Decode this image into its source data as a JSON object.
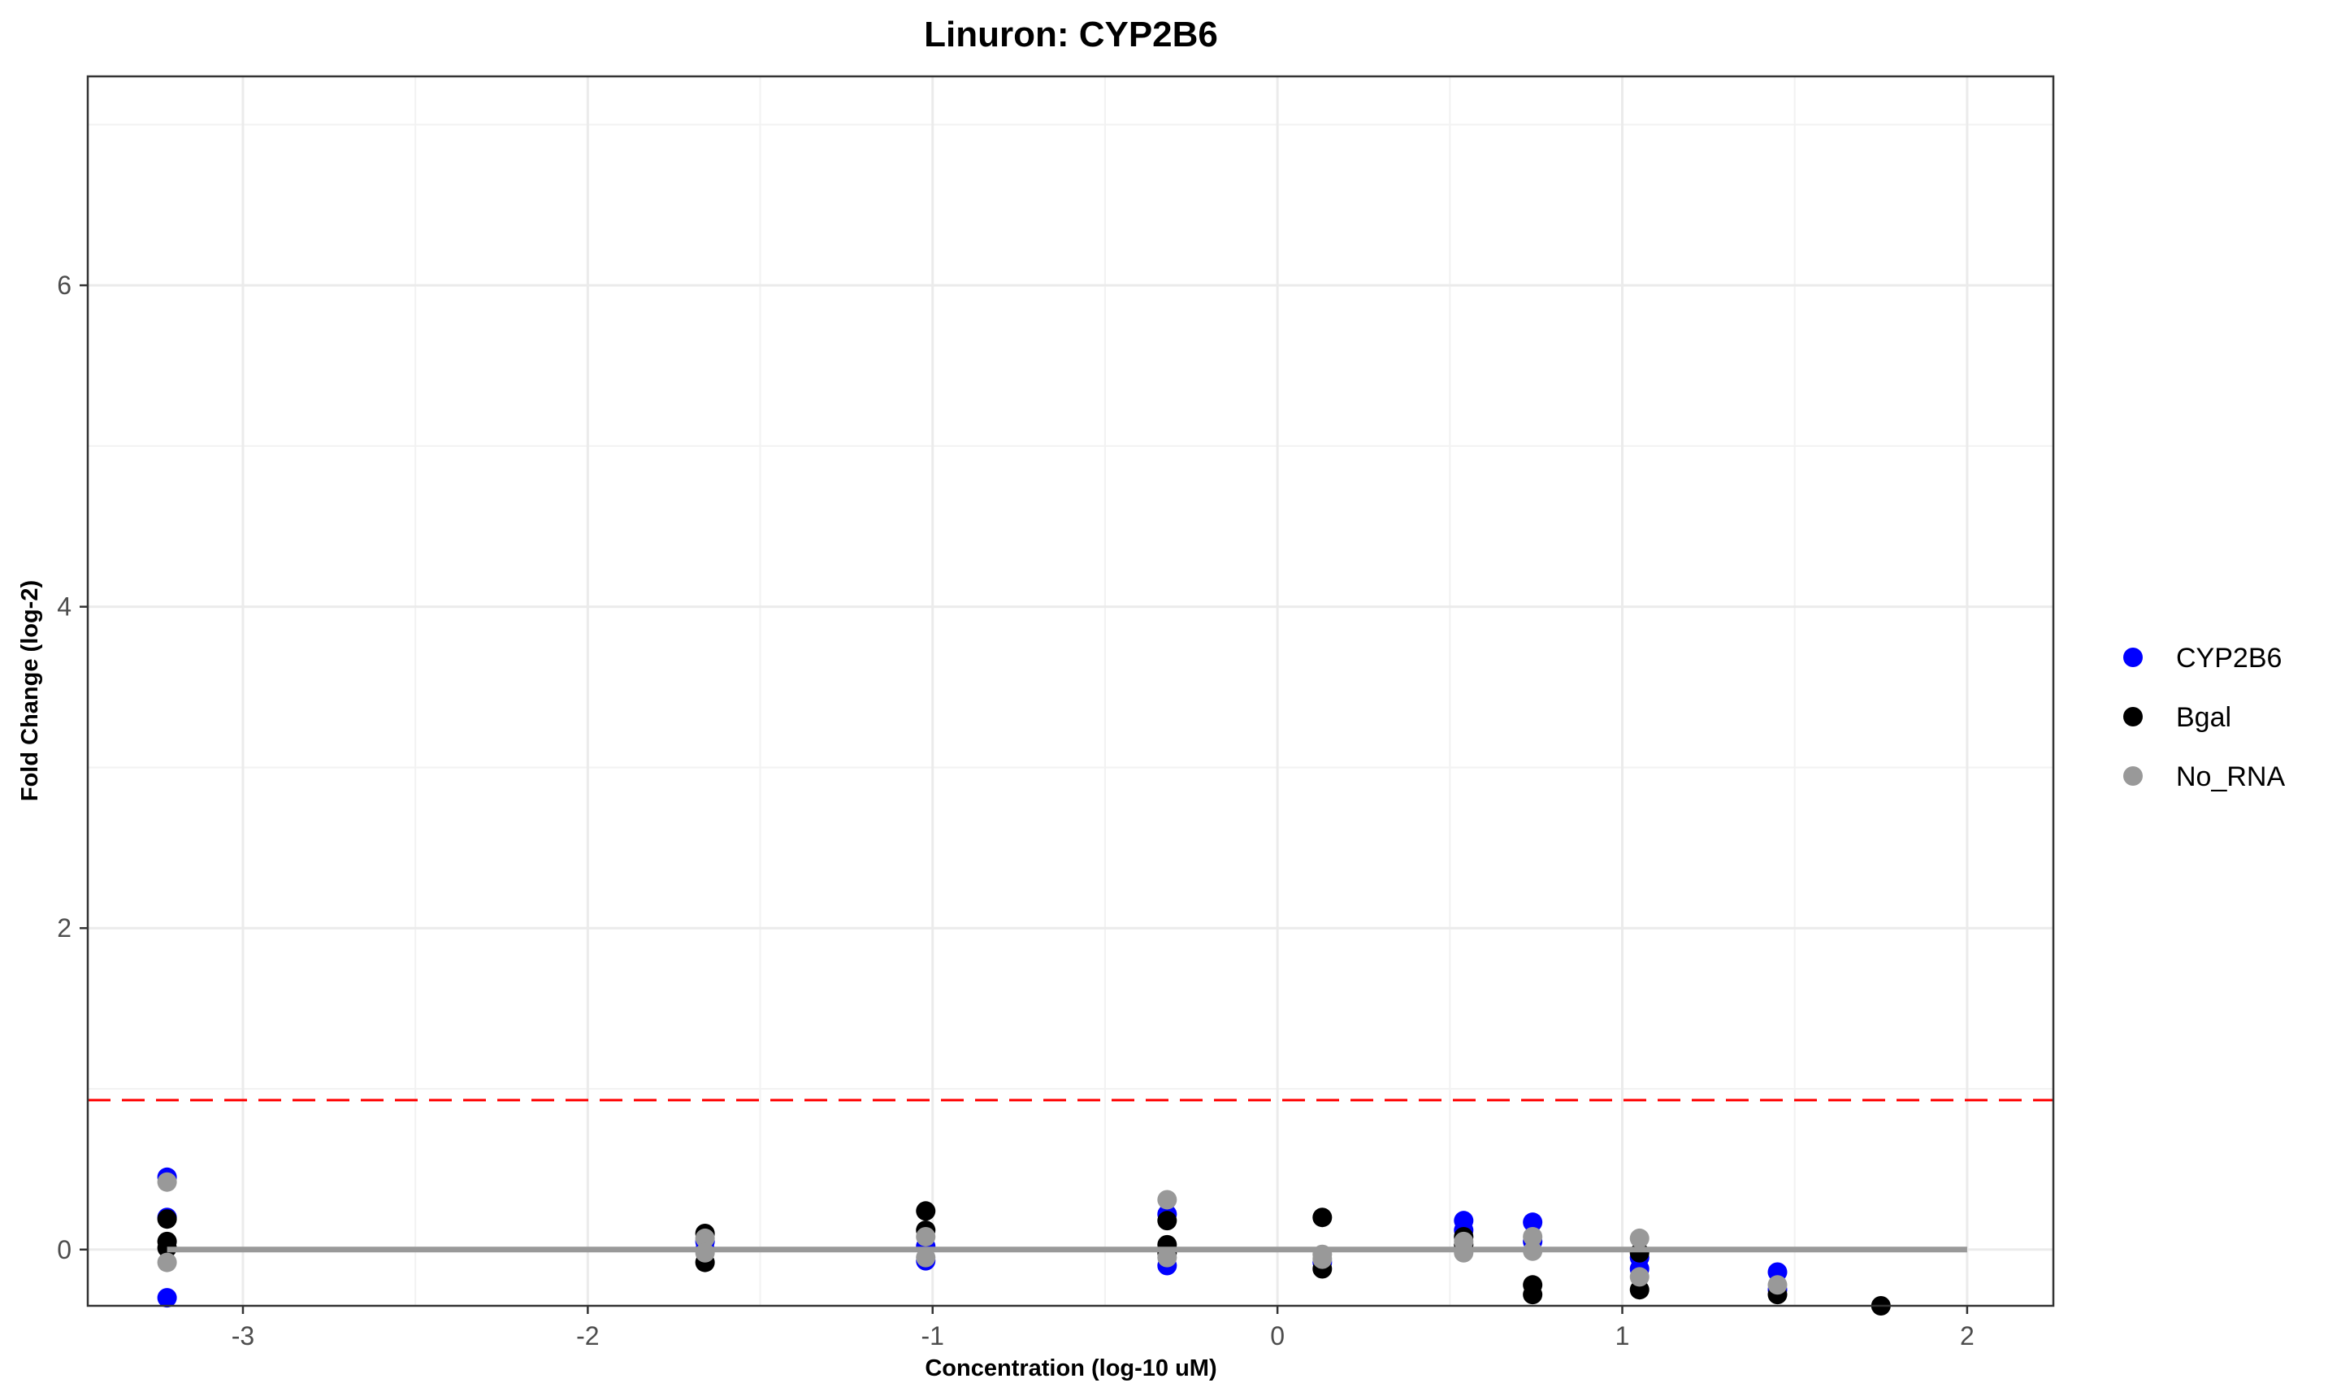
{
  "chart_data": {
    "type": "scatter",
    "title": "Linuron: CYP2B6",
    "xlabel": "Concentration (log-10 uM)",
    "ylabel": "Fold Change (log-2)",
    "xlim": [
      -3.45,
      2.25
    ],
    "ylim": [
      -0.35,
      7.3
    ],
    "x_ticks": [
      -3,
      -2,
      -1,
      0,
      1,
      2
    ],
    "y_ticks": [
      0,
      2,
      4,
      6
    ],
    "grid": true,
    "legend_position": "right",
    "threshold_line": {
      "y": 0.93,
      "color": "#ff0000",
      "style": "dashed"
    },
    "baseline": {
      "x": [
        -3.22,
        2.0
      ],
      "y": 0,
      "color": "#999999"
    },
    "series": [
      {
        "name": "CYP2B6",
        "color": "#0000ff",
        "points": [
          [
            -3.22,
            0.45
          ],
          [
            -3.22,
            0.2
          ],
          [
            -3.22,
            -0.3
          ],
          [
            -1.66,
            0.05
          ],
          [
            -1.66,
            0.0
          ],
          [
            -1.02,
            0.02
          ],
          [
            -1.02,
            -0.07
          ],
          [
            -0.32,
            0.22
          ],
          [
            -0.32,
            -0.1
          ],
          [
            0.13,
            -0.08
          ],
          [
            0.54,
            0.18
          ],
          [
            0.54,
            0.12
          ],
          [
            0.74,
            0.17
          ],
          [
            0.74,
            0.05
          ],
          [
            1.05,
            -0.05
          ],
          [
            1.05,
            -0.12
          ],
          [
            1.45,
            -0.14
          ],
          [
            1.45,
            -0.25
          ]
        ]
      },
      {
        "name": "Bgal",
        "color": "#000000",
        "points": [
          [
            -3.22,
            0.19
          ],
          [
            -3.22,
            0.05
          ],
          [
            -3.22,
            0.01
          ],
          [
            -1.66,
            0.1
          ],
          [
            -1.66,
            -0.08
          ],
          [
            -1.02,
            0.24
          ],
          [
            -1.02,
            0.12
          ],
          [
            -0.32,
            0.18
          ],
          [
            -0.32,
            0.03
          ],
          [
            -0.32,
            -0.02
          ],
          [
            0.13,
            0.2
          ],
          [
            0.13,
            -0.12
          ],
          [
            0.54,
            0.08
          ],
          [
            0.54,
            0.03
          ],
          [
            0.74,
            -0.22
          ],
          [
            0.74,
            -0.28
          ],
          [
            1.05,
            -0.02
          ],
          [
            1.05,
            -0.25
          ],
          [
            1.45,
            -0.28
          ],
          [
            1.75,
            -0.35
          ]
        ]
      },
      {
        "name": "No_RNA",
        "color": "#999999",
        "points": [
          [
            -3.22,
            0.42
          ],
          [
            -3.22,
            -0.08
          ],
          [
            -1.66,
            0.07
          ],
          [
            -1.66,
            -0.02
          ],
          [
            -1.02,
            0.08
          ],
          [
            -1.02,
            -0.05
          ],
          [
            -0.32,
            0.31
          ],
          [
            -0.32,
            -0.05
          ],
          [
            0.13,
            -0.03
          ],
          [
            0.13,
            -0.06
          ],
          [
            0.54,
            0.05
          ],
          [
            0.54,
            -0.02
          ],
          [
            0.74,
            0.08
          ],
          [
            0.74,
            -0.01
          ],
          [
            1.05,
            0.07
          ],
          [
            1.05,
            -0.17
          ],
          [
            1.45,
            -0.22
          ]
        ]
      }
    ]
  }
}
